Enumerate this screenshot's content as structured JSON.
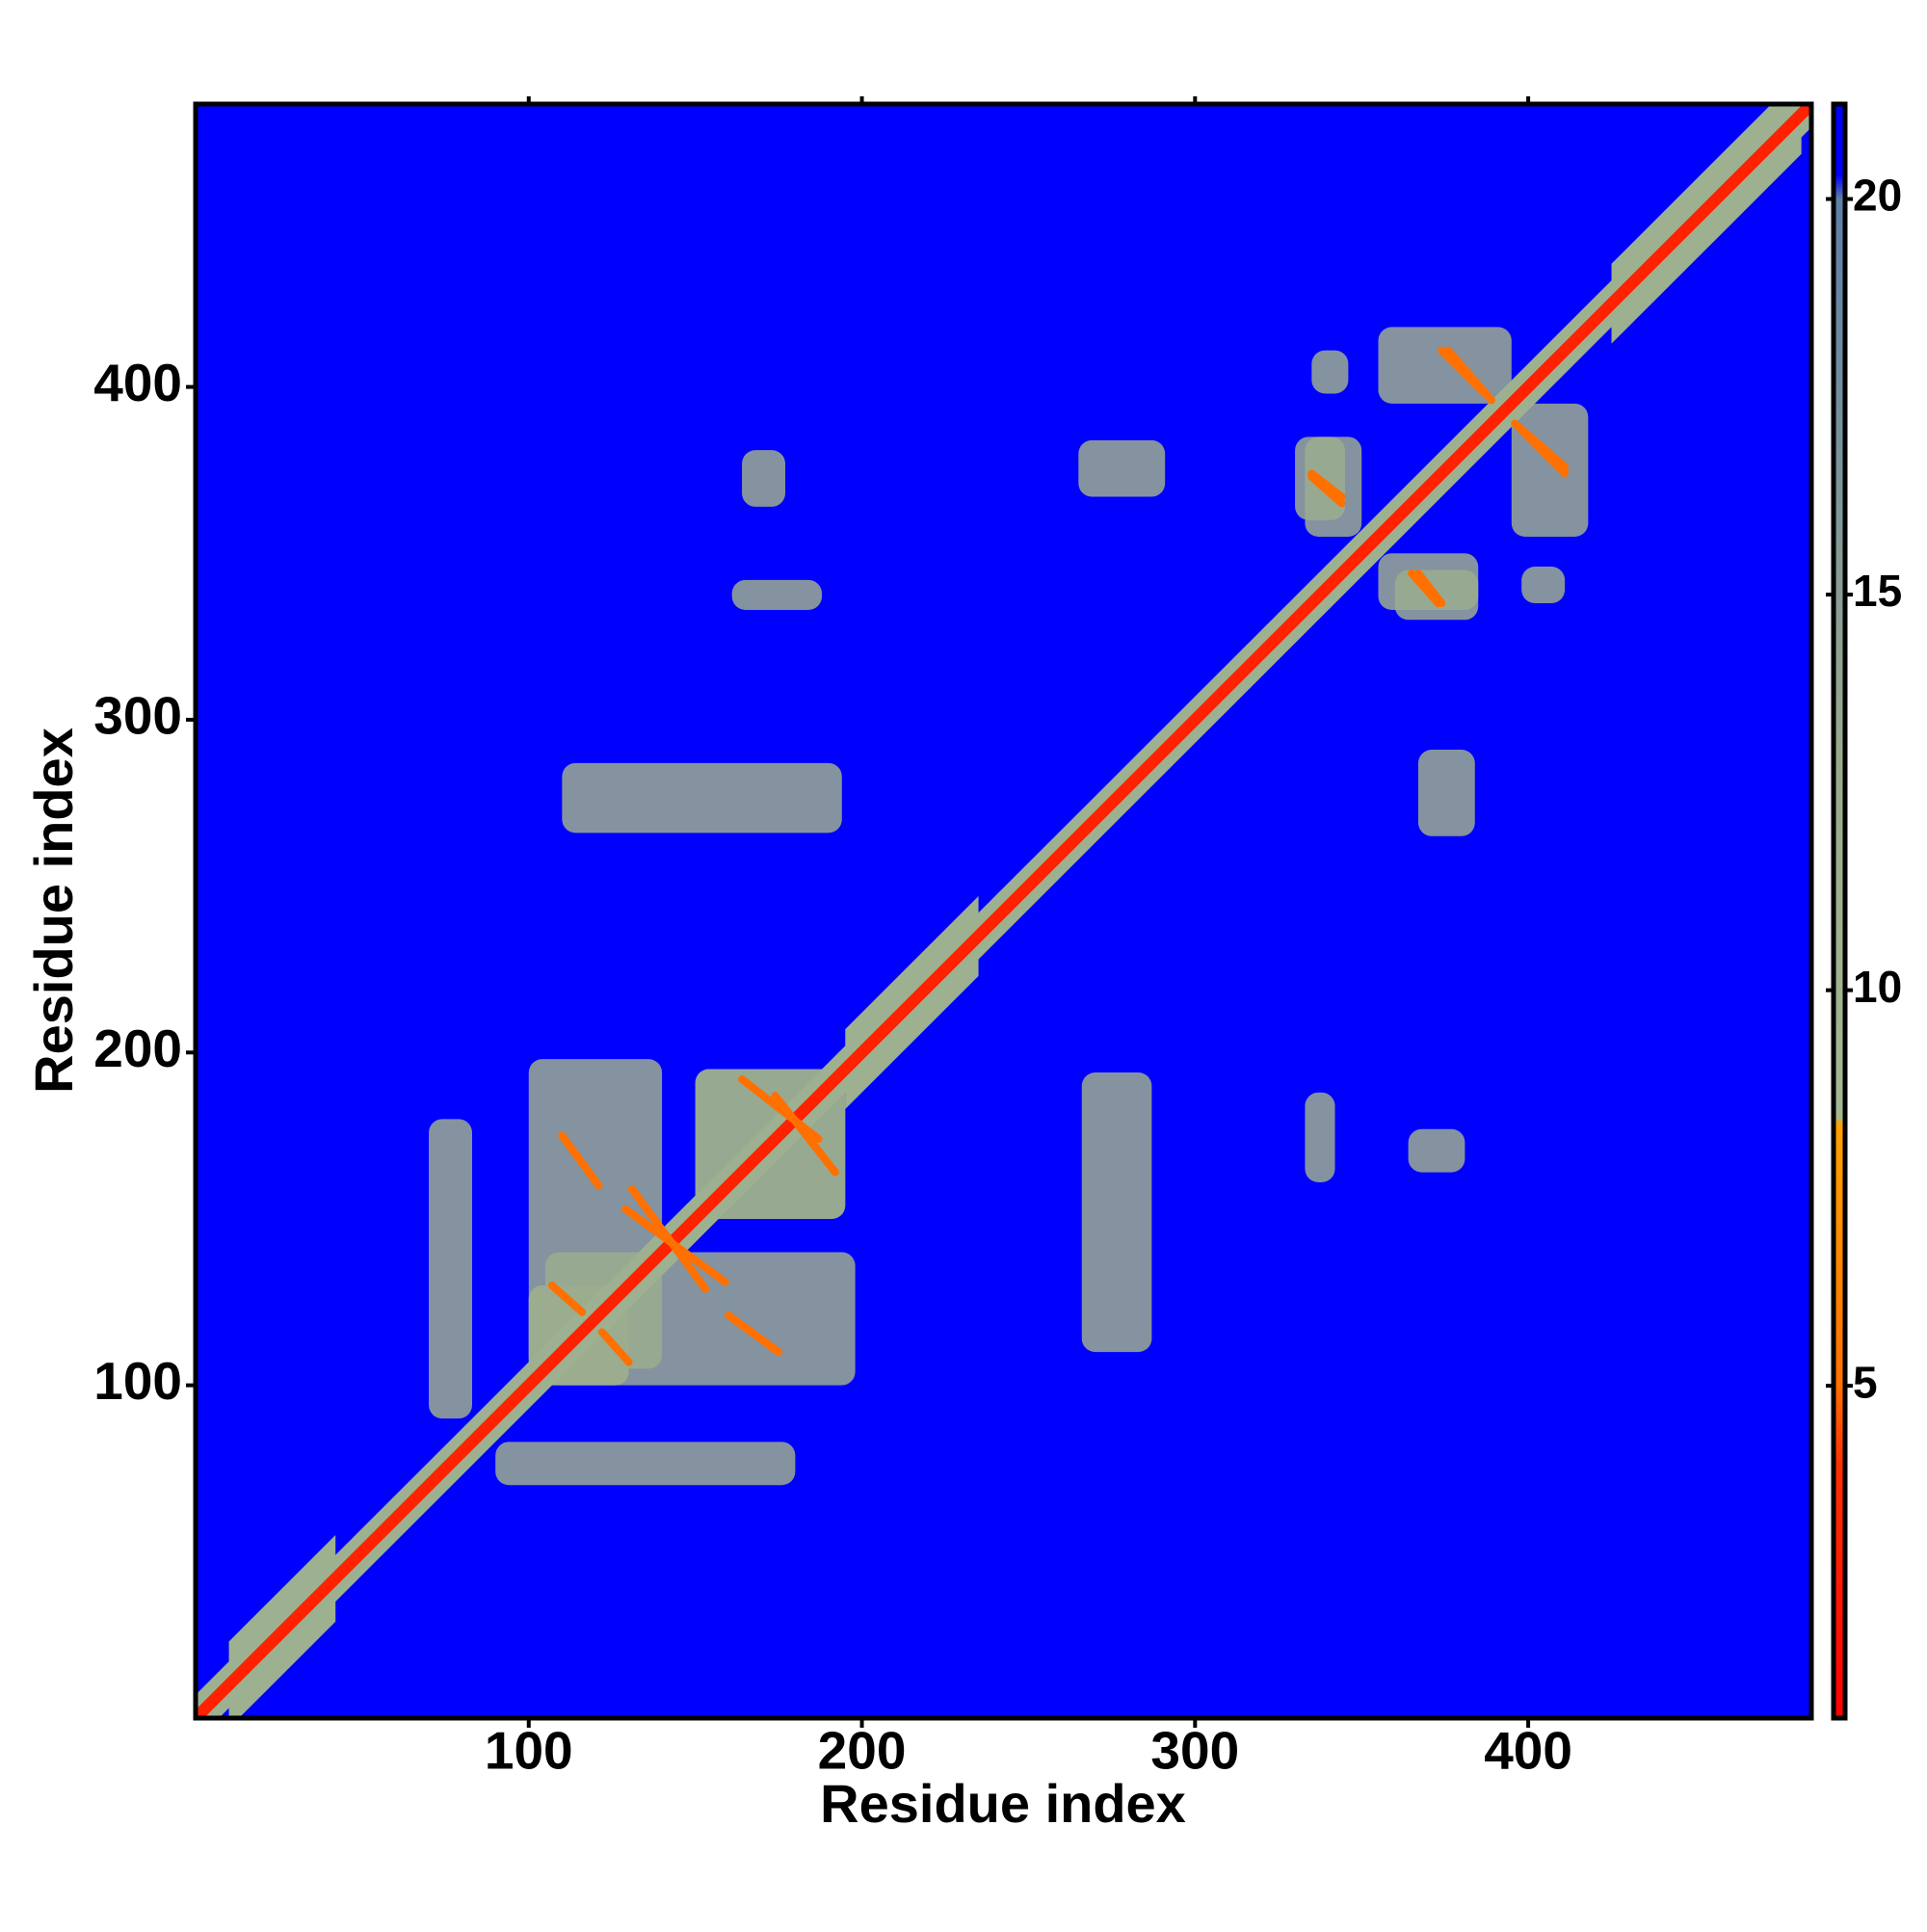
{
  "chart_data": {
    "type": "heatmap",
    "x_label": "Residue index",
    "y_label": "Residue index",
    "xlim": [
      0,
      485
    ],
    "ylim": [
      0,
      485
    ],
    "xticks": [
      100,
      200,
      300,
      400
    ],
    "yticks": [
      100,
      200,
      300,
      400
    ],
    "zlim": [
      0.8,
      21.2
    ],
    "zticks": [
      5,
      10,
      15,
      20
    ],
    "colorscale": [
      [
        0.8,
        "#ff0000"
      ],
      [
        4,
        "#ff3000"
      ],
      [
        5,
        "#ff7000"
      ],
      [
        8.3,
        "#ffa000"
      ],
      [
        8.4,
        "#a4b894"
      ],
      [
        13,
        "#98aa8c"
      ],
      [
        20,
        "#5f7fa8"
      ],
      [
        20.3,
        "#0000ff"
      ],
      [
        21.2,
        "#0000ff"
      ]
    ],
    "symmetric": true,
    "bands": [
      {
        "from": 0,
        "to": 485,
        "width": 7,
        "value": 11
      },
      {
        "from": 10,
        "to": 42,
        "width": 13,
        "value": 11
      },
      {
        "from": 195,
        "to": 235,
        "width": 12,
        "value": 11
      },
      {
        "from": 425,
        "to": 482,
        "width": 12,
        "value": 11
      },
      {
        "from": 0,
        "to": 485,
        "width": 2.5,
        "value": 3
      }
    ],
    "patches": [
      {
        "x": [
          164,
          177
        ],
        "y": [
          364,
          381
        ],
        "value": 12
      },
      {
        "x": [
          161,
          188
        ],
        "y": [
          333,
          342
        ],
        "value": 12
      },
      {
        "x": [
          110,
          194
        ],
        "y": [
          266,
          287
        ],
        "value": 12
      },
      {
        "x": [
          265,
          291
        ],
        "y": [
          367,
          384
        ],
        "value": 12
      },
      {
        "x": [
          335,
          346
        ],
        "y": [
          398,
          411
        ],
        "value": 12
      },
      {
        "x": [
          70,
          83
        ],
        "y": [
          90,
          180
        ],
        "value": 12
      },
      {
        "x": [
          100,
          140
        ],
        "y": [
          105,
          198
        ],
        "value": 12
      },
      {
        "x": [
          150,
          195
        ],
        "y": [
          150,
          195
        ],
        "value": 12
      },
      {
        "x": [
          100,
          130
        ],
        "y": [
          100,
          130
        ],
        "value": 12
      },
      {
        "x": [
          333,
          350
        ],
        "y": [
          355,
          385
        ],
        "value": 12
      },
      {
        "x": [
          355,
          395
        ],
        "y": [
          395,
          418
        ],
        "value": 12
      },
      {
        "x": [
          330,
          345
        ],
        "y": [
          360,
          385
        ],
        "value": 12
      }
    ],
    "strands": [
      {
        "x": [
          335,
          344
        ],
        "y": [
          367,
          374
        ],
        "value": 5
      },
      {
        "x": [
          365,
          373
        ],
        "y": [
          335,
          344
        ],
        "value": 5
      },
      {
        "x": [
          376,
          389
        ],
        "y": [
          396,
          411
        ],
        "value": 5
      },
      {
        "x": [
          398,
          411
        ],
        "y": [
          374,
          387
        ],
        "value": 5
      },
      {
        "x": [
          107,
          116
        ],
        "y": [
          122,
          130
        ],
        "value": 5
      },
      {
        "x": [
          160,
          175
        ],
        "y": [
          110,
          121
        ],
        "value": 5
      },
      {
        "x": [
          164,
          187
        ],
        "y": [
          174,
          192
        ],
        "value": 5
      },
      {
        "x": [
          131,
          153
        ],
        "y": [
          129,
          159
        ],
        "value": 5
      }
    ]
  }
}
